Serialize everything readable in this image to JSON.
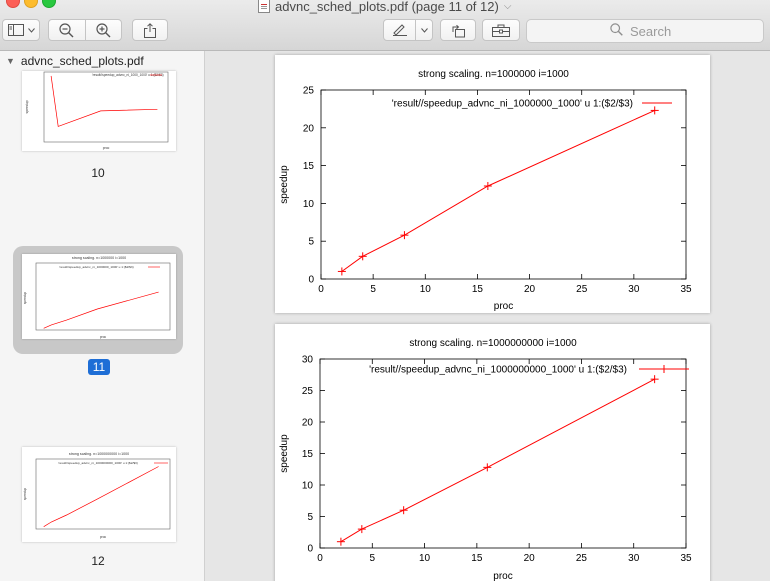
{
  "window": {
    "title": "advnc_sched_plots.pdf (page 11 of 12)",
    "title_caret": "⌵"
  },
  "toolbar": {
    "search_placeholder": "Search",
    "icons": [
      "sidebar-toggle-icon",
      "chevron-down-icon",
      "zoom-out-icon",
      "zoom-in-icon",
      "share-icon",
      "markup-pen-icon",
      "rotate-icon",
      "toolbox-icon",
      "search-icon"
    ]
  },
  "sidebar": {
    "file_name": "advnc_sched_plots.pdf",
    "disclosure": "▼",
    "pages": [
      {
        "label": "10",
        "selected": false
      },
      {
        "label": "11",
        "selected": true
      },
      {
        "label": "12",
        "selected": false
      }
    ],
    "thumb_texts": {
      "p10_legend": "'result//speedup_advnc_ni_1000_1000' u 1:($2/$3)",
      "p10_xlabel": "proc",
      "p10_ylabel": "speedup",
      "p11_title": "strong scaling. n=1000000 i=1000",
      "p11_legend": "'result//speedup_advnc_ni_1000000_1000' u 1:($2/$3)",
      "p11_xlabel": "proc",
      "p11_ylabel": "speedup",
      "p12_title": "strong scaling. n=1000000000 i=1000",
      "p12_legend": "'result//speedup_advnc_ni_1000000000_1000' u 1:($2/$3)",
      "p12_xlabel": "proc",
      "p12_ylabel": "speedup"
    }
  },
  "colors": {
    "series": "#ff0000",
    "selection": "#1e6ed6"
  },
  "chart_data": [
    {
      "type": "line",
      "title": "strong scaling. n=1000000 i=1000",
      "xlabel": "proc",
      "ylabel": "speedup",
      "xlim": [
        0,
        35
      ],
      "ylim": [
        0,
        25
      ],
      "xticks": [
        0,
        5,
        10,
        15,
        20,
        25,
        30,
        35
      ],
      "yticks": [
        0,
        5,
        10,
        15,
        20,
        25
      ],
      "legend_position": "top-right",
      "series": [
        {
          "name": "'result//speedup_advnc_ni_1000000_1000' u 1:($2/$3)",
          "x": [
            2,
            4,
            8,
            16,
            32
          ],
          "y": [
            1.0,
            3.0,
            5.8,
            12.3,
            22.3
          ]
        }
      ]
    },
    {
      "type": "line",
      "title": "strong scaling. n=1000000000 i=1000",
      "xlabel": "proc",
      "ylabel": "speedup",
      "xlim": [
        0,
        35
      ],
      "ylim": [
        0,
        30
      ],
      "xticks": [
        0,
        5,
        10,
        15,
        20,
        25,
        30,
        35
      ],
      "yticks": [
        0,
        5,
        10,
        15,
        20,
        25,
        30
      ],
      "legend_position": "top-right",
      "series": [
        {
          "name": "'result//speedup_advnc_ni_1000000000_1000' u 1:($2/$3)",
          "x": [
            2,
            4,
            8,
            16,
            32
          ],
          "y": [
            1.0,
            3.0,
            6.0,
            12.8,
            26.8
          ]
        }
      ]
    }
  ],
  "thumb_chart_data": [
    {
      "x": [
        2,
        4,
        16,
        32
      ],
      "y": [
        0.85,
        0.2,
        0.4,
        0.42
      ],
      "xlim": [
        0,
        35
      ],
      "ylim": [
        0,
        0.9
      ]
    }
  ]
}
